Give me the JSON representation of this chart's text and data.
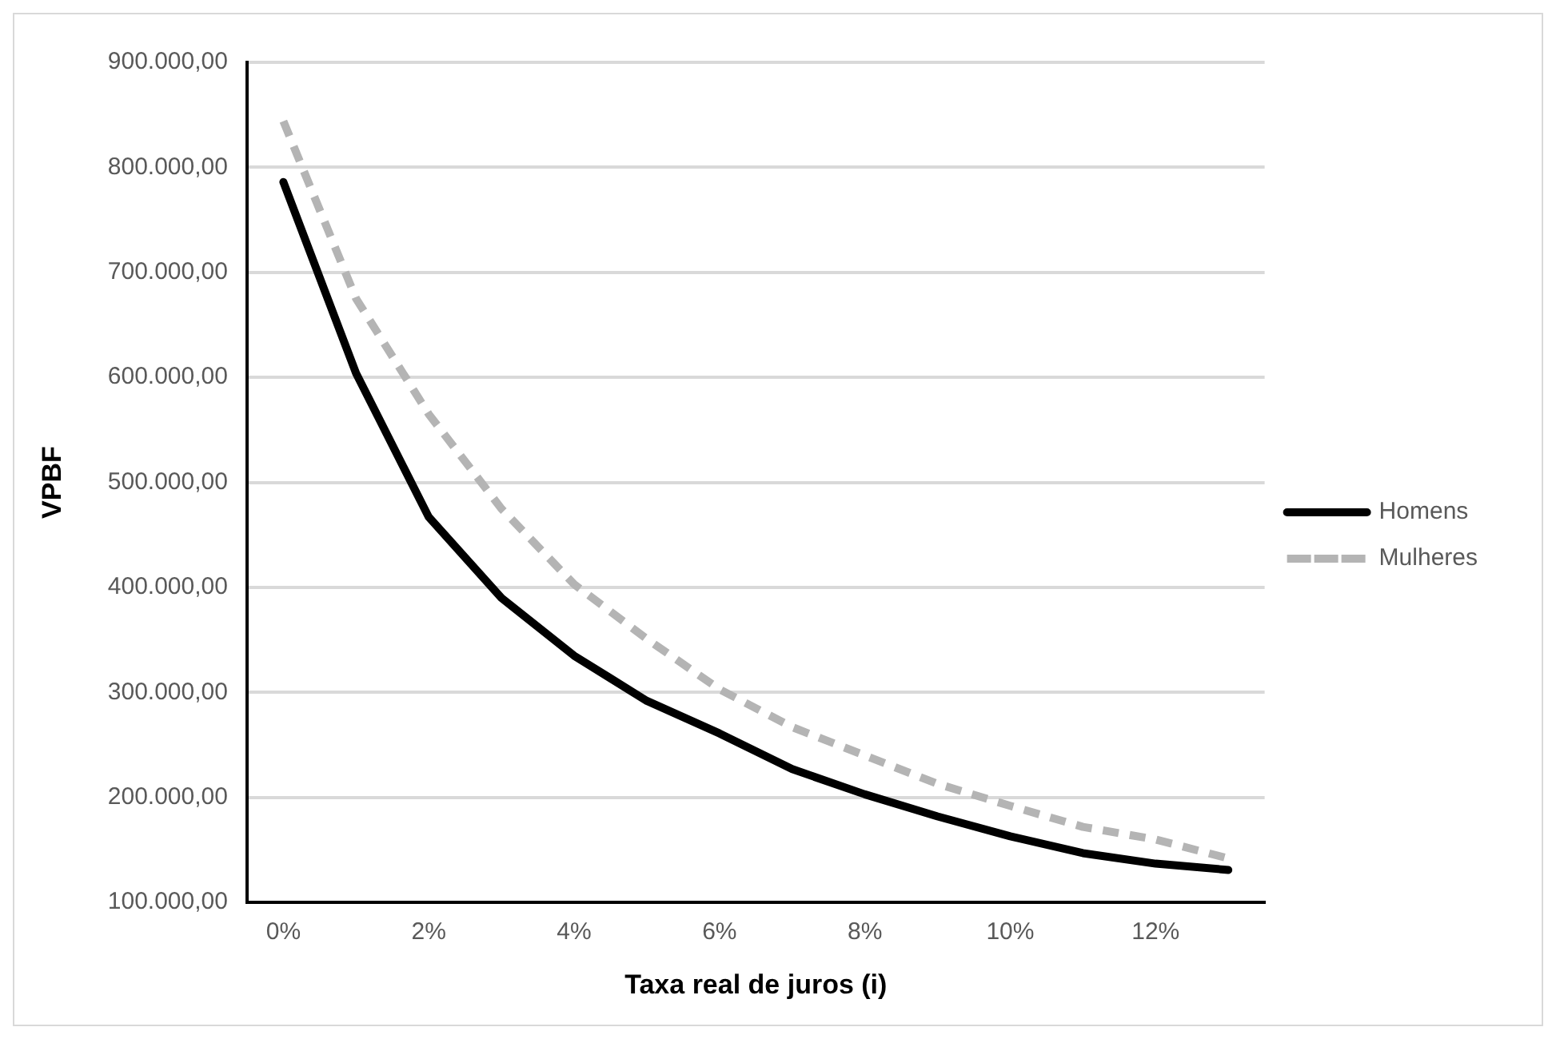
{
  "chart_data": {
    "type": "line",
    "xlabel": "Taxa real de juros (i)",
    "ylabel": "VPBF",
    "categories": [
      "0%",
      null,
      "2%",
      null,
      "4%",
      null,
      "6%",
      null,
      "8%",
      null,
      "10%",
      null,
      "12%",
      null
    ],
    "series": [
      {
        "name": "Homens",
        "color": "#000000",
        "line_style": "solid",
        "values": [
          786000,
          604000,
          467000,
          390000,
          335000,
          292000,
          261000,
          227000,
          203000,
          182000,
          163000,
          147000,
          137000,
          131000
        ]
      },
      {
        "name": "Mulheres",
        "color": "#b4b4b4",
        "line_style": "dashed",
        "values": [
          844000,
          675000,
          565000,
          475000,
          403000,
          351000,
          303000,
          267000,
          240000,
          213000,
          192000,
          172000,
          160000,
          142000
        ]
      }
    ],
    "ylim": [
      100000,
      900000
    ],
    "yticks": [
      {
        "value": 100000,
        "label": "100.000,00"
      },
      {
        "value": 200000,
        "label": "200.000,00"
      },
      {
        "value": 300000,
        "label": "300.000,00"
      },
      {
        "value": 400000,
        "label": "400.000,00"
      },
      {
        "value": 500000,
        "label": "500.000,00"
      },
      {
        "value": 600000,
        "label": "600.000,00"
      },
      {
        "value": 700000,
        "label": "700.000,00"
      },
      {
        "value": 800000,
        "label": "800.000,00"
      },
      {
        "value": 900000,
        "label": "900.000,00"
      }
    ],
    "grid": "y",
    "legend": "right",
    "marker": "none"
  }
}
